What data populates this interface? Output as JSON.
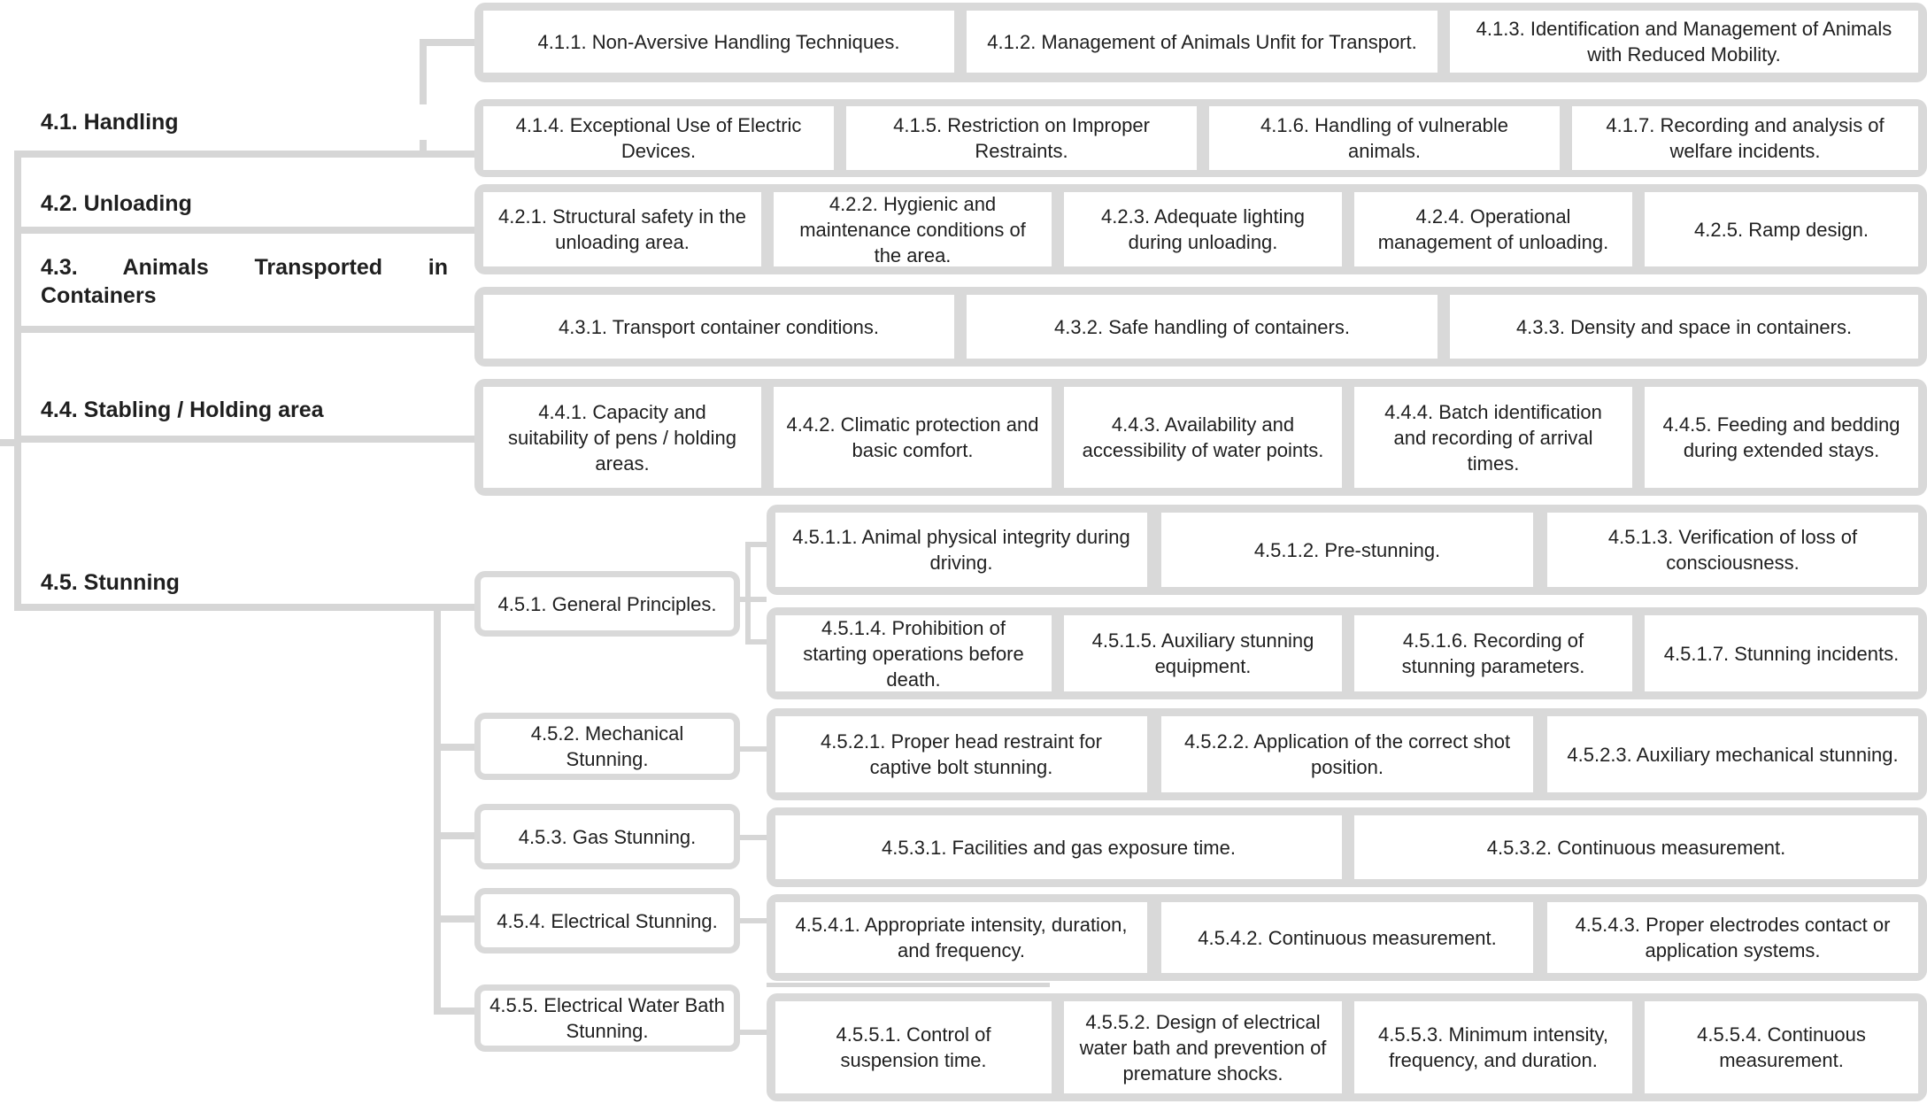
{
  "categories": {
    "c41": "4.1. Handling",
    "c42": "4.2. Unloading",
    "c43": "4.3. Animals Transported in Containers",
    "c44": "4.4. Stabling / Holding area",
    "c45": "4.5. Stunning"
  },
  "handling": [
    "4.1.1. Non-Aversive Handling Techniques.",
    "4.1.2. Management of Animals Unfit for Transport.",
    "4.1.3. Identification and Management of Animals with Reduced Mobility.",
    "4.1.4. Exceptional Use of Electric Devices.",
    "4.1.5. Restriction on Improper Restraints.",
    "4.1.6. Handling of vulnerable animals.",
    "4.1.7. Recording and analysis of welfare incidents."
  ],
  "unloading": [
    "4.2.1. Structural safety in the unloading area.",
    "4.2.2. Hygienic and maintenance conditions of the area.",
    "4.2.3. Adequate lighting during unloading.",
    "4.2.4. Operational management of unloading.",
    "4.2.5. Ramp design."
  ],
  "containers": [
    "4.3.1. Transport container conditions.",
    "4.3.2. Safe handling of containers.",
    "4.3.3. Density and space in containers."
  ],
  "stabling": [
    "4.4.1. Capacity and suitability of pens / holding areas.",
    "4.4.2. Climatic protection and basic comfort.",
    "4.4.3. Availability and accessibility of water points.",
    "4.4.4. Batch identification and recording of arrival times.",
    "4.4.5. Feeding and bedding during extended stays."
  ],
  "stunning": {
    "general": {
      "label": "4.5.1. General Principles.",
      "items": [
        "4.5.1.1. Animal physical integrity during driving.",
        "4.5.1.2. Pre-stunning.",
        "4.5.1.3. Verification of loss of consciousness.",
        "4.5.1.4. Prohibition of starting operations before death.",
        "4.5.1.5. Auxiliary stunning equipment.",
        "4.5.1.6. Recording of stunning parameters.",
        "4.5.1.7. Stunning incidents."
      ]
    },
    "mechanical": {
      "label": "4.5.2. Mechanical Stunning.",
      "items": [
        "4.5.2.1. Proper head restraint for captive bolt stunning.",
        "4.5.2.2. Application of the correct shot position.",
        "4.5.2.3. Auxiliary mechanical stunning."
      ]
    },
    "gas": {
      "label": "4.5.3. Gas Stunning.",
      "items": [
        "4.5.3.1. Facilities and gas exposure time.",
        "4.5.3.2. Continuous measurement."
      ]
    },
    "electrical": {
      "label": "4.5.4. Electrical Stunning.",
      "items": [
        "4.5.4.1. Appropriate intensity, duration, and frequency.",
        "4.5.4.2. Continuous measurement.",
        "4.5.4.3. Proper electrodes contact or application systems."
      ]
    },
    "waterbath": {
      "label": "4.5.5. Electrical Water Bath Stunning.",
      "items": [
        "4.5.5.1. Control of suspension time.",
        "4.5.5.2. Design of electrical water bath and prevention of premature shocks.",
        "4.5.5.3. Minimum intensity, frequency, and duration.",
        "4.5.5.4. Continuous measurement."
      ]
    }
  }
}
